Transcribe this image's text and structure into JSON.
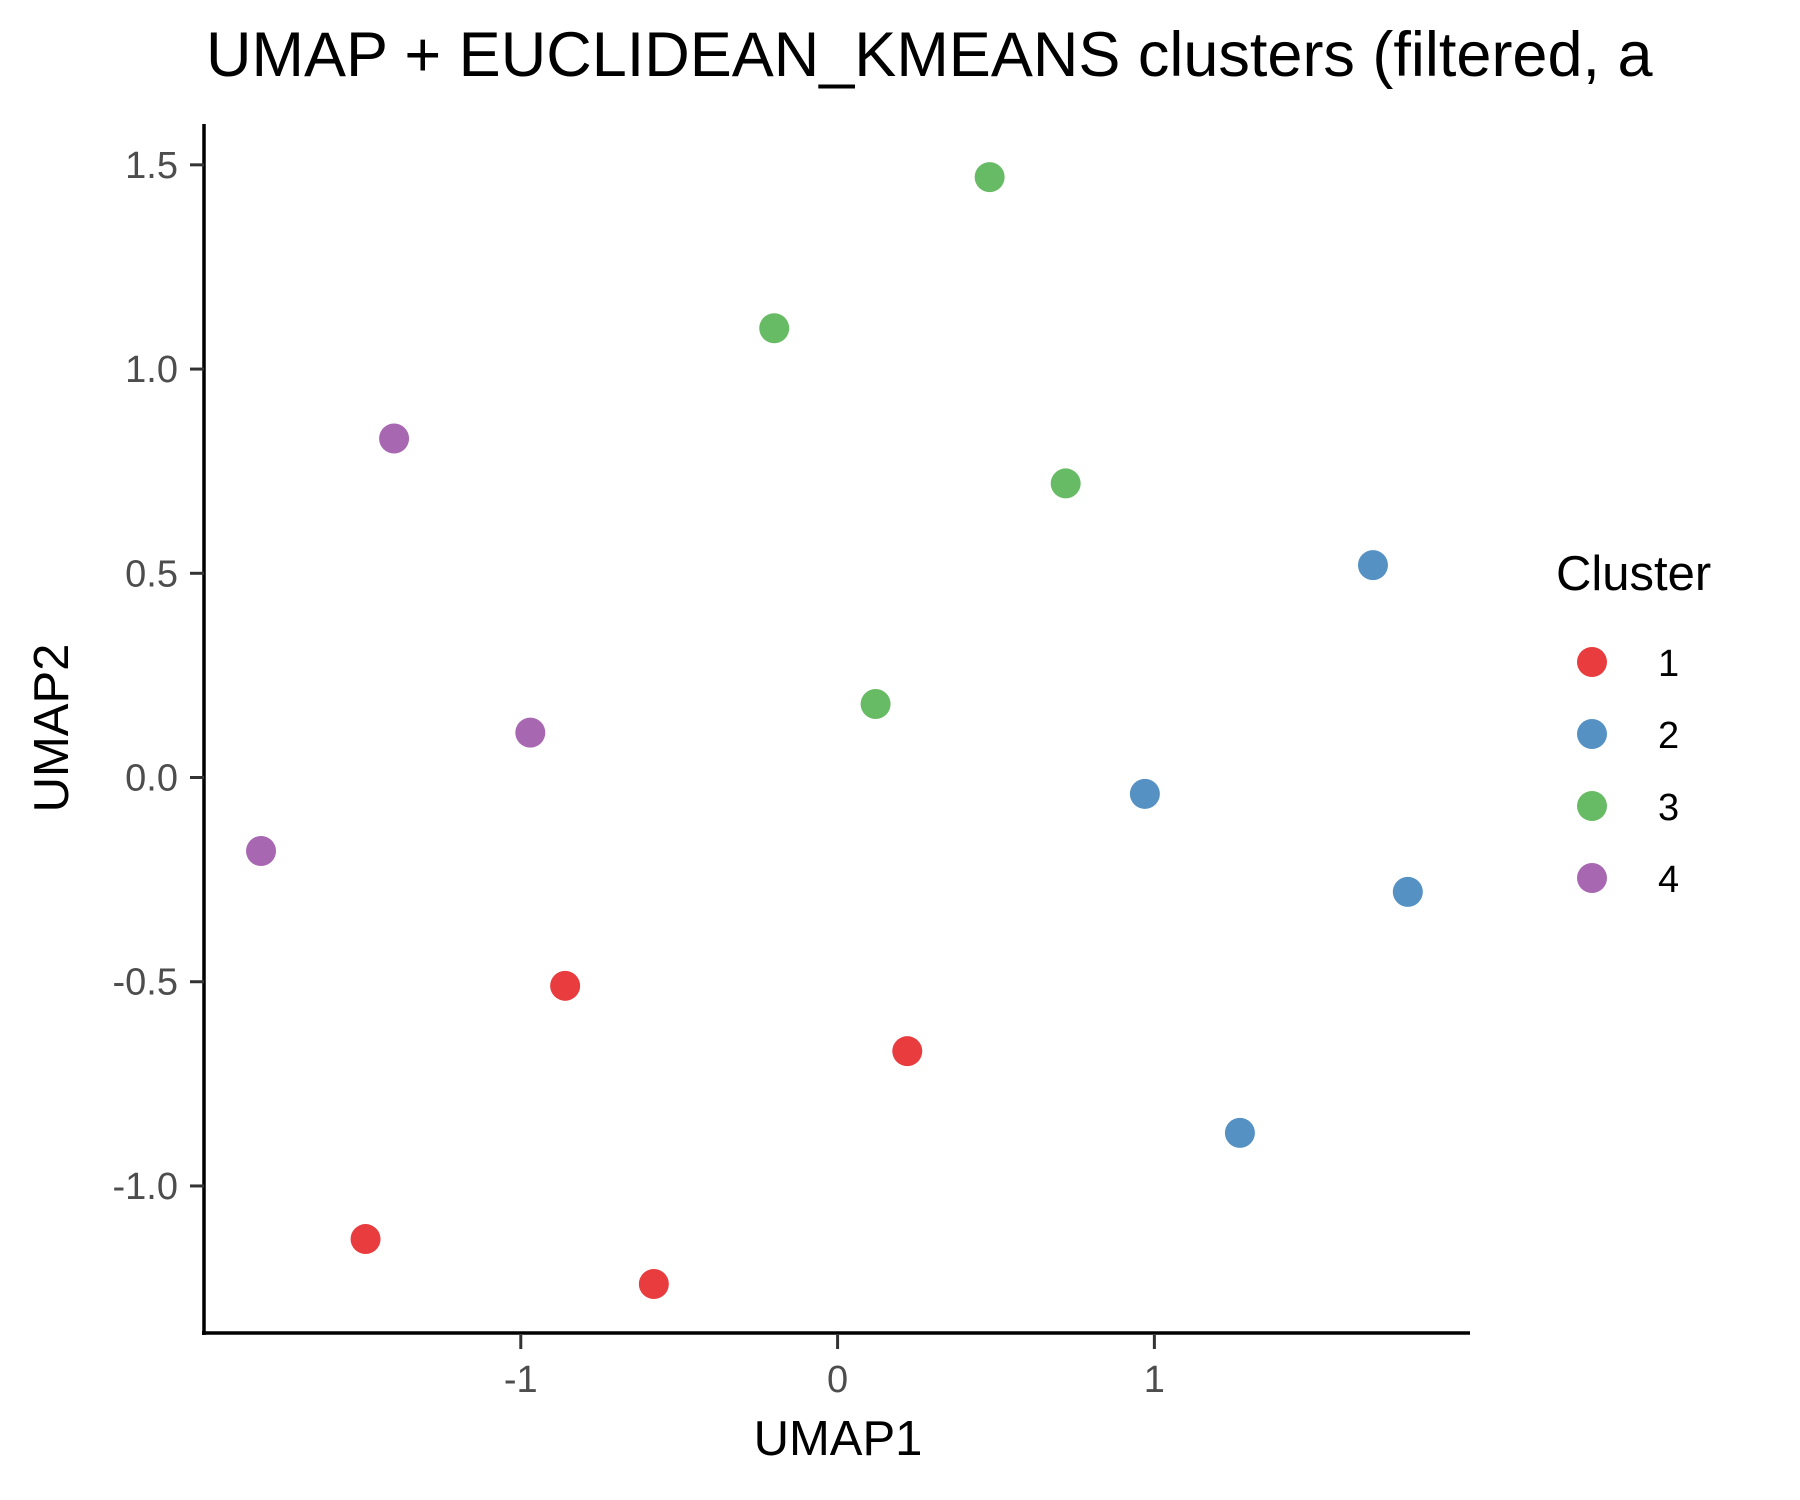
{
  "chart_data": {
    "type": "scatter",
    "title": "UMAP + EUCLIDEAN_KMEANS clusters (filtered, a",
    "xlabel": "UMAP1",
    "ylabel": "UMAP2",
    "xlim": [
      -2.0,
      1.99
    ],
    "ylim": [
      -1.36,
      1.6
    ],
    "x_ticks": [
      -1,
      0,
      1
    ],
    "x_tick_labels": [
      "-1",
      "0",
      "1"
    ],
    "y_ticks": [
      -1.0,
      -0.5,
      0.0,
      0.5,
      1.0,
      1.5
    ],
    "y_tick_labels": [
      "-1.0",
      "-0.5",
      "0.0",
      "0.5",
      "1.0",
      "1.5"
    ],
    "grid": false,
    "legend": {
      "title": "Cluster",
      "position": "right"
    },
    "series": [
      {
        "name": "1",
        "color": "#E41A1C",
        "points": [
          [
            -1.49,
            -1.13
          ],
          [
            -0.86,
            -0.51
          ],
          [
            -0.58,
            -1.24
          ],
          [
            0.22,
            -0.67
          ]
        ]
      },
      {
        "name": "2",
        "color": "#377EB8",
        "points": [
          [
            0.97,
            -0.04
          ],
          [
            1.27,
            -0.87
          ],
          [
            1.69,
            0.52
          ],
          [
            1.8,
            -0.28
          ]
        ]
      },
      {
        "name": "3",
        "color": "#4DAF4A",
        "points": [
          [
            -0.2,
            1.1
          ],
          [
            0.12,
            0.18
          ],
          [
            0.48,
            1.47
          ],
          [
            0.72,
            0.72
          ]
        ]
      },
      {
        "name": "4",
        "color": "#984EA3",
        "points": [
          [
            -1.82,
            -0.18
          ],
          [
            -1.4,
            0.83
          ],
          [
            -0.97,
            0.11
          ]
        ]
      }
    ]
  }
}
